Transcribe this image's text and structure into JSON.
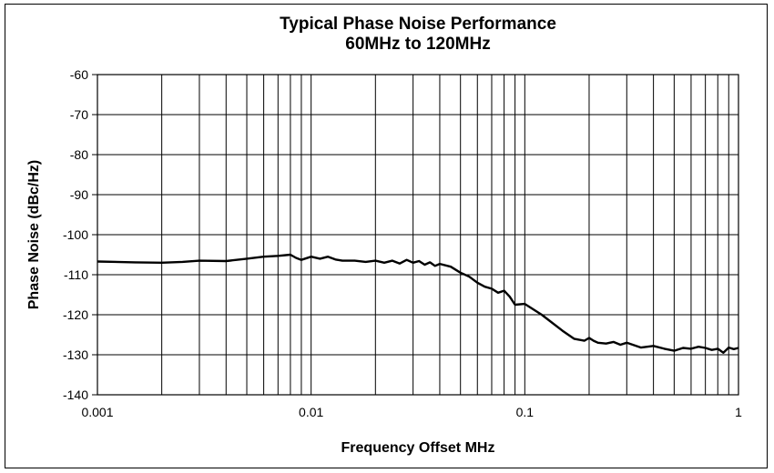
{
  "chart_data": {
    "type": "line",
    "title": "Typical Phase Noise Performance",
    "subtitle": "60MHz to 120MHz",
    "xlabel": "Frequency Offset MHz",
    "ylabel": "Phase Noise (dBc/Hz)",
    "x_scale": "log",
    "xlim": [
      0.001,
      1
    ],
    "ylim": [
      -140,
      -60
    ],
    "grid": true,
    "x_ticks": [
      0.001,
      0.01,
      0.1,
      1
    ],
    "x_tick_labels": [
      "0.001",
      "0.01",
      "0.1",
      "1"
    ],
    "y_ticks": [
      -60,
      -70,
      -80,
      -90,
      -100,
      -110,
      -120,
      -130,
      -140
    ],
    "y_tick_labels": [
      "-60",
      "-70",
      "-80",
      "-90",
      "-100",
      "-110",
      "-120",
      "-130",
      "-140"
    ],
    "series": [
      {
        "color": "#000000",
        "x": [
          0.001,
          0.0015,
          0.002,
          0.0025,
          0.003,
          0.004,
          0.005,
          0.006,
          0.007,
          0.008,
          0.0085,
          0.009,
          0.01,
          0.011,
          0.012,
          0.013,
          0.014,
          0.016,
          0.018,
          0.02,
          0.022,
          0.024,
          0.026,
          0.028,
          0.03,
          0.032,
          0.034,
          0.036,
          0.038,
          0.04,
          0.045,
          0.05,
          0.055,
          0.06,
          0.065,
          0.07,
          0.075,
          0.08,
          0.085,
          0.09,
          0.1,
          0.12,
          0.15,
          0.17,
          0.19,
          0.2,
          0.21,
          0.22,
          0.24,
          0.26,
          0.28,
          0.3,
          0.35,
          0.4,
          0.45,
          0.5,
          0.55,
          0.6,
          0.65,
          0.7,
          0.75,
          0.8,
          0.85,
          0.9,
          0.95,
          1.0
        ],
        "y": [
          -106.7,
          -106.9,
          -107.0,
          -106.8,
          -106.5,
          -106.6,
          -106.0,
          -105.5,
          -105.3,
          -105.0,
          -105.8,
          -106.3,
          -105.5,
          -106.0,
          -105.5,
          -106.2,
          -106.5,
          -106.5,
          -106.8,
          -106.5,
          -107.0,
          -106.5,
          -107.2,
          -106.3,
          -107.0,
          -106.6,
          -107.5,
          -106.9,
          -107.8,
          -107.3,
          -108.0,
          -109.5,
          -110.5,
          -112.0,
          -113.0,
          -113.5,
          -114.5,
          -114.0,
          -115.5,
          -117.5,
          -117.3,
          -120.0,
          -124.0,
          -126.0,
          -126.5,
          -125.8,
          -126.5,
          -127.0,
          -127.2,
          -126.8,
          -127.5,
          -127.0,
          -128.2,
          -127.8,
          -128.5,
          -129.0,
          -128.3,
          -128.5,
          -128.0,
          -128.3,
          -128.8,
          -128.5,
          -129.5,
          -128.2,
          -128.6,
          -128.3
        ]
      }
    ]
  }
}
